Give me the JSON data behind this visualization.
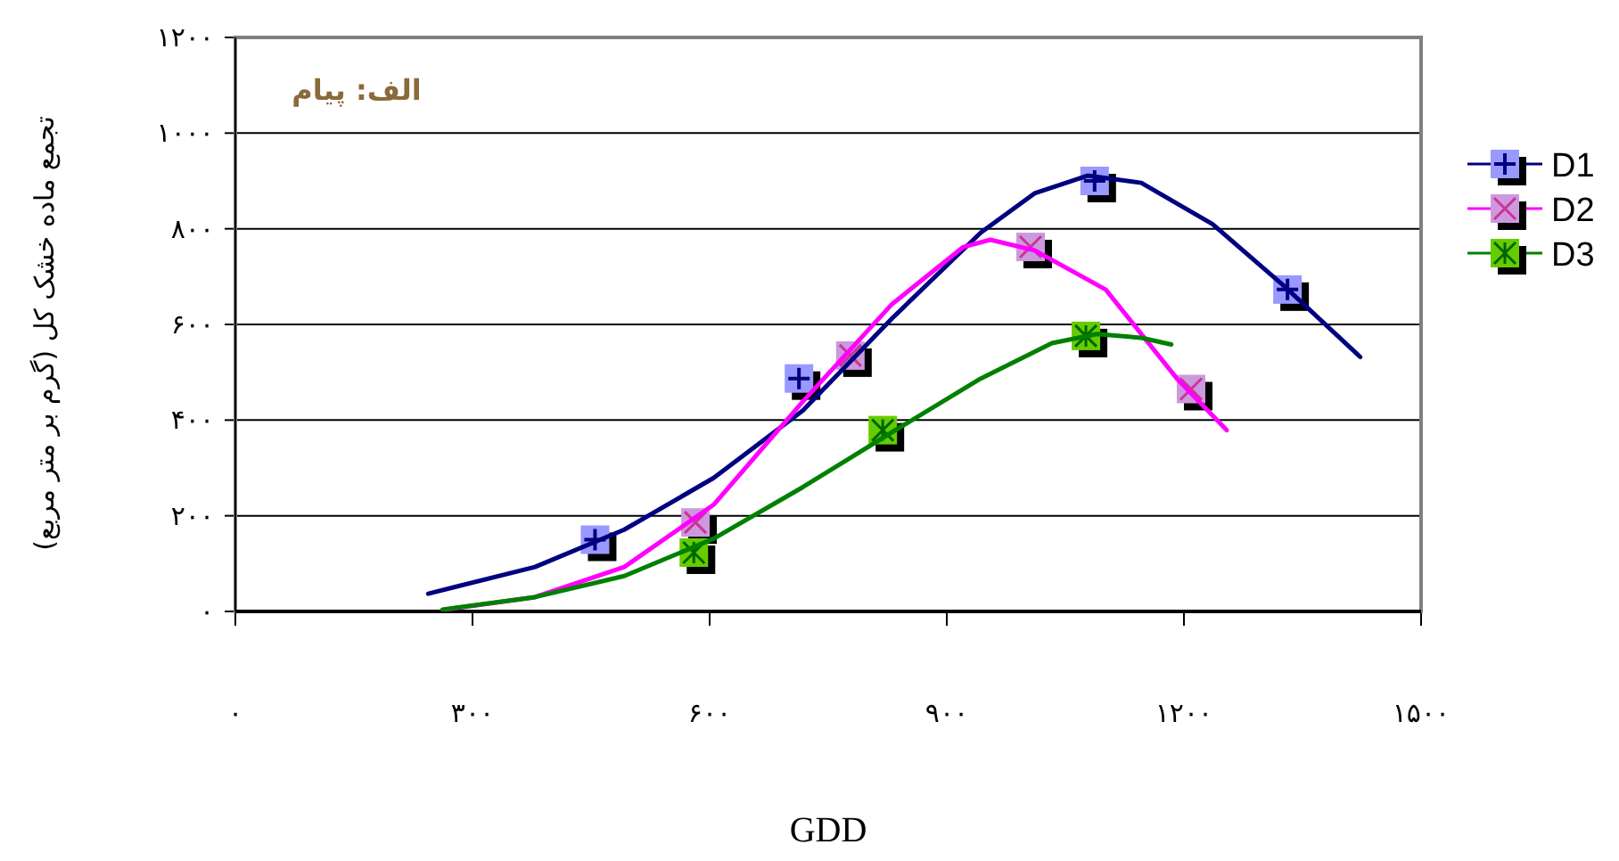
{
  "chart_data": {
    "type": "scatter",
    "xlabel": "GDD",
    "ylabel": "تجمع ماده خشک کل (گرم بر متر مربع)",
    "annotations": [
      "الف: پیام"
    ],
    "xlim": [
      0,
      1500
    ],
    "ylim": [
      0,
      1200
    ],
    "xticks": [
      {
        "value": 0,
        "label": "۰"
      },
      {
        "value": 300,
        "label": "۳۰۰"
      },
      {
        "value": 600,
        "label": "۶۰۰"
      },
      {
        "value": 900,
        "label": "۹۰۰"
      },
      {
        "value": 1200,
        "label": "۱۲۰۰"
      },
      {
        "value": 1500,
        "label": "۱۵۰۰"
      }
    ],
    "yticks": [
      {
        "value": 0,
        "label": "۰"
      },
      {
        "value": 200,
        "label": "۲۰۰"
      },
      {
        "value": 400,
        "label": "۴۰۰"
      },
      {
        "value": 600,
        "label": "۶۰۰"
      },
      {
        "value": 800,
        "label": "۸۰۰"
      },
      {
        "value": 1000,
        "label": "۱۰۰۰"
      },
      {
        "value": 1200,
        "label": "۱۲۰۰"
      }
    ],
    "grid": "y",
    "legend": "right",
    "series": [
      {
        "type": "line",
        "color": "#000080",
        "x": [
          244,
          379,
          492,
          605,
          718,
          831,
          943,
          1011,
          1078,
          1146,
          1236,
          1327,
          1423
        ],
        "values": [
          37,
          93,
          171,
          279,
          420,
          613,
          792,
          874,
          911,
          896,
          810,
          680,
          532
        ]
      },
      {
        "type": "line",
        "color": "#ff00ff",
        "x": [
          266,
          379,
          492,
          605,
          718,
          831,
          921,
          955,
          1011,
          1101,
          1191,
          1254
        ],
        "values": [
          4,
          30,
          93,
          223,
          439,
          643,
          762,
          777,
          755,
          673,
          487,
          379
        ]
      },
      {
        "type": "line",
        "color": "#008000",
        "x": [
          262,
          379,
          492,
          605,
          718,
          831,
          943,
          1033,
          1090,
          1146,
          1184
        ],
        "values": [
          4,
          30,
          74,
          152,
          260,
          375,
          487,
          561,
          580,
          572,
          558
        ]
      },
      {
        "name": "D1",
        "marker": "square",
        "color": "#9999ff",
        "x": [
          455,
          713,
          1087,
          1331
        ],
        "values": [
          150,
          487,
          900,
          673
        ]
      },
      {
        "name": "D2",
        "marker": "square",
        "color": "#cc99dd",
        "x": [
          582,
          778,
          1006,
          1209
        ],
        "values": [
          186,
          535,
          762,
          465
        ]
      },
      {
        "name": "D3",
        "marker": "square",
        "color": "#66cc00",
        "x": [
          580,
          819,
          1076
        ],
        "values": [
          123,
          379,
          576
        ]
      }
    ]
  }
}
